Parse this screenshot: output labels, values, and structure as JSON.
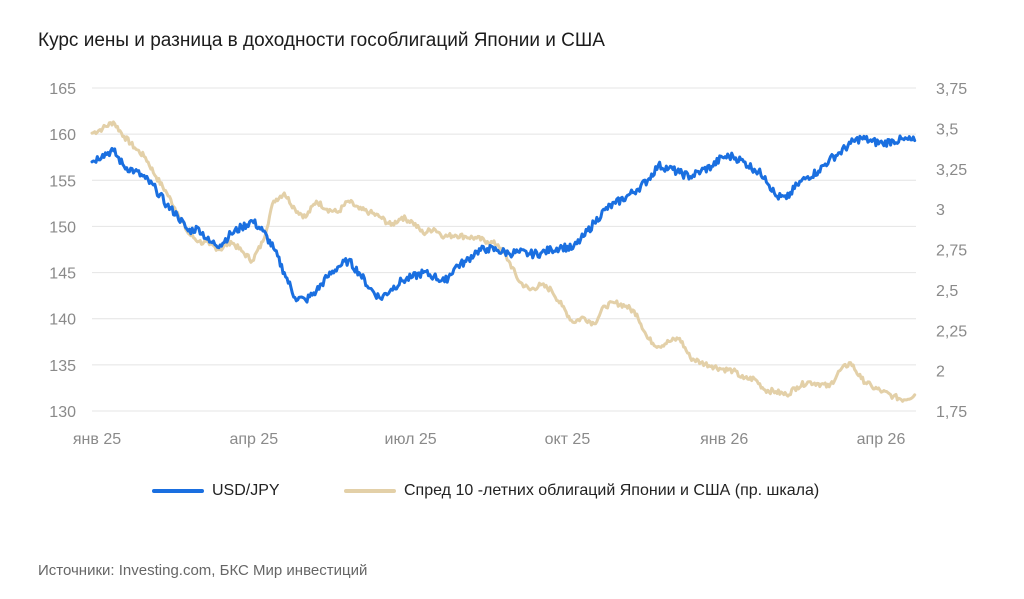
{
  "title": "Курс иены и разница в доходности гособлигаций Японии и США",
  "source": "Источники: Investing.com, БКС Мир инвестиций",
  "chart_data": {
    "type": "line",
    "title": "Курс иены и разница в доходности гособлигаций Японии и США",
    "x_ticks": [
      "янв 25",
      "апр 25",
      "июл 25",
      "окт 25",
      "янв 26",
      "апр 26"
    ],
    "y_left": {
      "ticks": [
        "165",
        "160",
        "155",
        "150",
        "145",
        "140",
        "135",
        "130"
      ],
      "ylim": [
        130,
        165
      ]
    },
    "y_right": {
      "ticks": [
        "3,75",
        "3,5",
        "3,25",
        "3",
        "2,75",
        "2,5",
        "2,25",
        "2",
        "1,75"
      ],
      "ylim": [
        1.75,
        3.75
      ]
    },
    "grid": true,
    "legend_position": "bottom",
    "x_range": [
      0,
      15.5
    ],
    "series": [
      {
        "name": "USD/JPY",
        "axis": "left",
        "color": "#1a6fe0",
        "x": [
          0,
          0.2,
          0.4,
          0.6,
          0.8,
          1.0,
          1.2,
          1.4,
          1.6,
          1.8,
          2.0,
          2.2,
          2.4,
          2.6,
          2.8,
          3.0,
          3.2,
          3.4,
          3.6,
          3.8,
          4.0,
          4.2,
          4.4,
          4.6,
          4.8,
          5.0,
          5.2,
          5.4,
          5.6,
          5.8,
          6.0,
          6.2,
          6.4,
          6.6,
          6.8,
          7.0,
          7.2,
          7.4,
          7.6,
          7.8,
          8.0,
          8.2,
          8.4,
          8.6,
          8.8,
          9.0,
          9.2,
          9.4,
          9.6,
          9.8,
          10.0,
          10.2,
          10.4,
          10.6,
          10.8,
          11.0,
          11.2,
          11.4,
          11.6,
          11.8,
          12.0,
          12.2,
          12.4,
          12.6,
          12.8,
          13.0,
          13.2,
          13.4,
          13.6,
          13.8,
          14.0,
          14.2,
          14.4,
          14.6,
          14.8,
          15.0,
          15.2,
          15.4
        ],
        "values": [
          157.0,
          157.8,
          158.2,
          156.5,
          156.0,
          155.2,
          154.0,
          152.3,
          151.2,
          149.5,
          149.8,
          148.3,
          148.0,
          149.2,
          149.9,
          150.6,
          149.5,
          147.6,
          145.0,
          142.3,
          142.0,
          143.0,
          144.5,
          145.6,
          146.3,
          145.0,
          143.3,
          142.2,
          143.2,
          144.1,
          144.5,
          145.0,
          144.6,
          144.0,
          145.6,
          146.2,
          147.3,
          147.6,
          147.4,
          147.1,
          147.2,
          147.0,
          147.1,
          147.5,
          147.8,
          147.6,
          148.9,
          150.4,
          151.8,
          152.5,
          153.2,
          154.0,
          155.0,
          156.6,
          156.3,
          155.8,
          155.4,
          156.0,
          156.5,
          157.5,
          157.6,
          157.0,
          156.2,
          155.4,
          153.3,
          153.0,
          154.5,
          155.4,
          156.0,
          157.2,
          158.0,
          159.0,
          159.6,
          159.2,
          159.0,
          159.3,
          159.4,
          159.3
        ]
      },
      {
        "name": "Спред 10 -летних облигаций Японии и США (пр. шкала)",
        "axis": "right",
        "color": "#e3d0a8",
        "x": [
          0,
          0.2,
          0.4,
          0.6,
          0.8,
          1.0,
          1.2,
          1.4,
          1.6,
          1.8,
          2.0,
          2.2,
          2.4,
          2.6,
          2.8,
          3.0,
          3.2,
          3.4,
          3.6,
          3.8,
          4.0,
          4.2,
          4.4,
          4.6,
          4.8,
          5.0,
          5.2,
          5.4,
          5.6,
          5.8,
          6.0,
          6.2,
          6.4,
          6.6,
          6.8,
          7.0,
          7.2,
          7.4,
          7.6,
          7.8,
          8.0,
          8.2,
          8.4,
          8.6,
          8.8,
          9.0,
          9.2,
          9.4,
          9.6,
          9.8,
          10.0,
          10.2,
          10.4,
          10.6,
          10.8,
          11.0,
          11.2,
          11.4,
          11.6,
          11.8,
          12.0,
          12.2,
          12.4,
          12.6,
          12.8,
          13.0,
          13.2,
          13.4,
          13.6,
          13.8,
          14.0,
          14.2,
          14.4,
          14.6,
          14.8,
          15.0,
          15.2,
          15.4
        ],
        "values": [
          3.47,
          3.5,
          3.54,
          3.45,
          3.38,
          3.32,
          3.2,
          3.1,
          2.98,
          2.85,
          2.8,
          2.78,
          2.75,
          2.8,
          2.74,
          2.68,
          2.8,
          3.05,
          3.1,
          3.0,
          2.95,
          3.05,
          3.0,
          2.98,
          3.05,
          3.0,
          2.98,
          2.95,
          2.9,
          2.95,
          2.92,
          2.85,
          2.88,
          2.83,
          2.84,
          2.83,
          2.82,
          2.8,
          2.78,
          2.68,
          2.55,
          2.5,
          2.53,
          2.5,
          2.4,
          2.3,
          2.33,
          2.29,
          2.4,
          2.42,
          2.4,
          2.35,
          2.2,
          2.15,
          2.18,
          2.2,
          2.08,
          2.05,
          2.03,
          2.01,
          2.0,
          1.95,
          1.95,
          1.88,
          1.87,
          1.85,
          1.9,
          1.93,
          1.92,
          1.9,
          2.0,
          2.05,
          1.95,
          1.9,
          1.87,
          1.84,
          1.82,
          1.85
        ]
      }
    ]
  }
}
